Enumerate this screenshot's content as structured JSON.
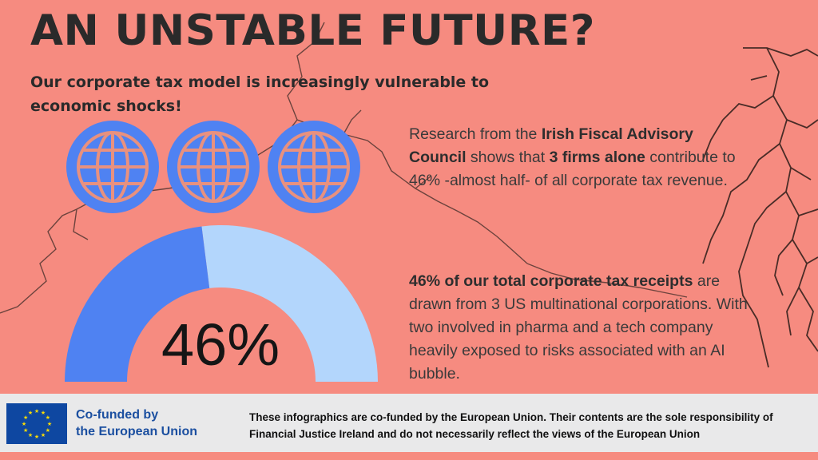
{
  "header": {
    "title": "AN UNSTABLE FUTURE?",
    "subtitle": "Our corporate tax model is increasingly vulnerable to economic shocks!"
  },
  "icons": [
    "globe-icon",
    "globe-icon",
    "globe-icon"
  ],
  "gauge": {
    "value_label": "46%",
    "fraction": 0.46,
    "colors": {
      "filled": "#4f82f2",
      "remaining": "#b3d6fc"
    }
  },
  "paragraph1": {
    "t1": "Research from the ",
    "b1": "Irish Fiscal Advisory Council",
    "t2": " shows that ",
    "b2": "3 firms alone",
    "t3": " contribute to 46% -almost half- of all corporate tax revenue."
  },
  "paragraph2": {
    "b1": "46% of our total corporate tax receipts",
    "t1": " are drawn from 3 US multinational corporations. With two involved in pharma and a tech company heavily exposed to risks associated with an AI bubble."
  },
  "footer": {
    "eu_line1": "Co-funded by",
    "eu_line2": "the European Union",
    "disclaimer": "These infographics are co-funded by the European Union. Their contents are the sole responsibility of Financial Justice Ireland and do not necessarily reflect the views of the European Union"
  },
  "colors": {
    "background": "#f68b80",
    "globe_blue": "#4f82f2",
    "globe_lines": "#e8917f",
    "eu_blue": "#0e47a1",
    "eu_star": "#ffdd00"
  }
}
